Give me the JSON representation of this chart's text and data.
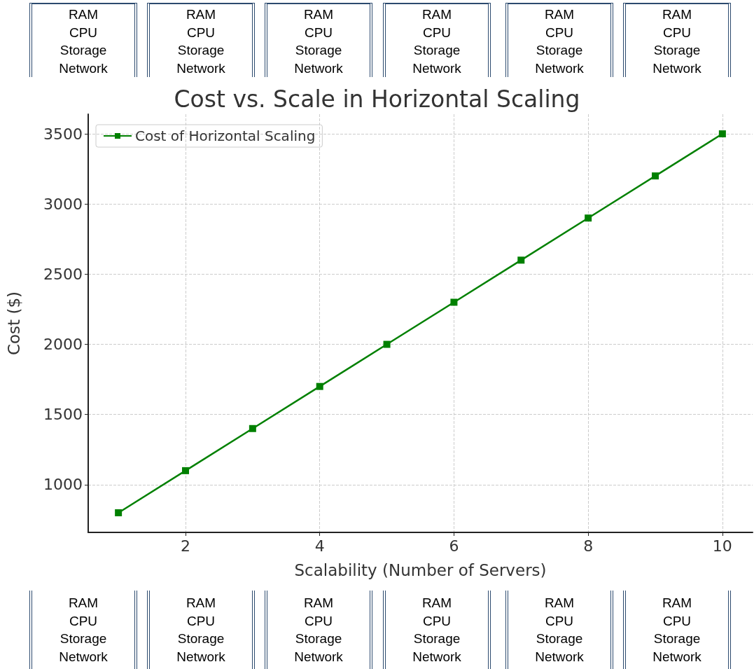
{
  "chart_data": {
    "type": "line",
    "title": "Cost vs. Scale in Horizontal Scaling",
    "xlabel": "Scalability (Number of Servers)",
    "ylabel": "Cost ($)",
    "x": [
      1,
      2,
      3,
      4,
      5,
      6,
      7,
      8,
      9,
      10
    ],
    "series": [
      {
        "name": "Cost of Horizontal Scaling",
        "color": "#008000",
        "values": [
          800,
          1100,
          1400,
          1700,
          2000,
          2300,
          2600,
          2900,
          3200,
          3500
        ]
      }
    ],
    "xlim": [
      0.55,
      10.45
    ],
    "xticks": [
      2,
      4,
      6,
      8,
      10
    ],
    "ylim": [
      660,
      3640
    ],
    "yticks": [
      1000,
      1500,
      2000,
      2500,
      3000,
      3500
    ],
    "grid": true,
    "legend": "top left",
    "marker": "square",
    "line_style": "solid",
    "annotations": [
      "RAM\nCPU\nStorage\nNetwork",
      "RAM\nCPU\nStorage\nNetwork",
      "RAM\nCPU\nStorage\nNetwork",
      "RAM\nCPU\nStorage\nNetwork",
      "RAM\nCPU\nStorage\nNetwork",
      "RAM\nCPU\nStorage\nNetwork",
      "RAM\nCPU\nStorage\nNetwork",
      "RAM\nCPU\nStorage\nNetwork",
      "RAM\nCPU\nStorage\nNetwork",
      "RAM\nCPU\nStorage\nNetwork",
      "RAM\nCPU\nStorage\nNetwork",
      "RAM\nCPU\nStorage\nNetwork"
    ]
  }
}
